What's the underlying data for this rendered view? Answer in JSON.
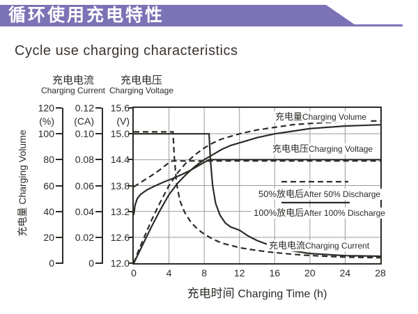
{
  "banner": {
    "title_zh": "循环使用充电特性",
    "accent_color": "#7b73b5"
  },
  "page": {
    "subtitle_en": "Cycle use charging characteristics"
  },
  "chart_data": {
    "type": "line",
    "title_zh": "循环使用充电特性",
    "title_en": "Cycle use charging characteristics",
    "xlabel_zh": "充电时间",
    "xlabel_en": "Charging Time (h)",
    "x_ticks": [
      "0",
      "4",
      "8",
      "12",
      "16",
      "20",
      "24",
      "28"
    ],
    "axes": {
      "time": {
        "min": 0,
        "max": 28
      },
      "volume": {
        "header_zh": "充电量",
        "header_en": "Charging Volume",
        "unit": "(%)",
        "min": 0,
        "max": 120,
        "ticks": [
          "120",
          "100",
          "80",
          "60",
          "40",
          "20",
          "0"
        ]
      },
      "current": {
        "header_zh": "充电电流",
        "header_en": "Charging Current",
        "unit": "(CA)",
        "min": 0,
        "max": 0.12,
        "ticks": [
          "0.12",
          "0.10",
          "0.08",
          "0.06",
          "0.04",
          "0.02",
          "0"
        ]
      },
      "voltage": {
        "header_zh": "充电电压",
        "header_en": "Charging Voltage",
        "unit": "(V)",
        "min": 12,
        "max": 15.6,
        "ticks": [
          "15.6",
          "15.0",
          "14.4",
          "13.8",
          "13.2",
          "12.6",
          "12.0"
        ]
      }
    },
    "grid": {
      "x_hours": [
        4,
        8,
        12,
        16,
        20,
        24
      ],
      "y_voltages": [
        15.0,
        14.4,
        13.8,
        13.2,
        12.6
      ]
    },
    "series": [
      {
        "name": "charging-current-after-100-discharge",
        "axis": "current",
        "style": "solid",
        "points": [
          [
            0,
            0.1
          ],
          [
            8.55,
            0.1
          ],
          [
            8.7,
            0.08
          ],
          [
            8.95,
            0.06
          ],
          [
            9.3,
            0.046
          ],
          [
            9.8,
            0.037
          ],
          [
            10.4,
            0.031
          ],
          [
            11,
            0.028
          ],
          [
            12,
            0.0255
          ],
          [
            13,
            0.021
          ],
          [
            14,
            0.0175
          ],
          [
            16,
            0.0125
          ],
          [
            18,
            0.0095
          ],
          [
            20,
            0.0075
          ],
          [
            24,
            0.0058
          ],
          [
            28,
            0.0054
          ]
        ]
      },
      {
        "name": "charging-current-after-50-discharge",
        "axis": "current",
        "style": "dashed",
        "points": [
          [
            0,
            0.1015
          ],
          [
            4.45,
            0.1015
          ],
          [
            4.6,
            0.082
          ],
          [
            4.85,
            0.062
          ],
          [
            5.25,
            0.048
          ],
          [
            5.8,
            0.039
          ],
          [
            6.5,
            0.0315
          ],
          [
            7.3,
            0.026
          ],
          [
            8,
            0.0225
          ],
          [
            9,
            0.0185
          ],
          [
            10,
            0.0155
          ],
          [
            12,
            0.012
          ],
          [
            14,
            0.0098
          ],
          [
            16,
            0.0082
          ],
          [
            18,
            0.0069
          ],
          [
            20,
            0.0059
          ],
          [
            24,
            0.0047
          ],
          [
            28,
            0.0042
          ]
        ]
      },
      {
        "name": "charging-voltage-after-100-discharge",
        "axis": "voltage",
        "style": "solid",
        "points": [
          [
            0,
            13.12
          ],
          [
            0.15,
            13.35
          ],
          [
            0.4,
            13.5
          ],
          [
            0.8,
            13.6
          ],
          [
            1.5,
            13.7
          ],
          [
            2.5,
            13.8
          ],
          [
            3.5,
            13.89
          ],
          [
            4.5,
            13.97
          ],
          [
            5.5,
            14.06
          ],
          [
            6.5,
            14.16
          ],
          [
            7.5,
            14.28
          ],
          [
            8.2,
            14.36
          ],
          [
            8.55,
            14.4
          ],
          [
            28,
            14.4
          ]
        ]
      },
      {
        "name": "charging-voltage-after-50-discharge",
        "axis": "voltage",
        "style": "dashed",
        "points": [
          [
            0,
            13.77
          ],
          [
            1,
            13.9
          ],
          [
            2,
            14.03
          ],
          [
            3,
            14.17
          ],
          [
            3.8,
            14.3
          ],
          [
            4.4,
            14.37
          ],
          [
            28,
            14.37
          ]
        ]
      },
      {
        "name": "charging-volume-after-100-discharge",
        "axis": "volume",
        "style": "solid",
        "points": [
          [
            0,
            0
          ],
          [
            0.5,
            7
          ],
          [
            1,
            14
          ],
          [
            2,
            28
          ],
          [
            3,
            41
          ],
          [
            4,
            53
          ],
          [
            5,
            62
          ],
          [
            6,
            69
          ],
          [
            7,
            75
          ],
          [
            8,
            80
          ],
          [
            9,
            84
          ],
          [
            10,
            88
          ],
          [
            11,
            91
          ],
          [
            12,
            93
          ],
          [
            14,
            97
          ],
          [
            16,
            100
          ],
          [
            18,
            102
          ],
          [
            20,
            104
          ],
          [
            24,
            106
          ],
          [
            28,
            107
          ]
        ]
      },
      {
        "name": "charging-volume-after-50-discharge",
        "axis": "volume",
        "style": "dashed",
        "points": [
          [
            0,
            0
          ],
          [
            0.5,
            9
          ],
          [
            1,
            17
          ],
          [
            2,
            33
          ],
          [
            3,
            47
          ],
          [
            4,
            60
          ],
          [
            5,
            70
          ],
          [
            6,
            78
          ],
          [
            7,
            84
          ],
          [
            8,
            89
          ],
          [
            9,
            93
          ],
          [
            10,
            96
          ],
          [
            12,
            100
          ],
          [
            14,
            103
          ],
          [
            16,
            105
          ],
          [
            18,
            107
          ],
          [
            20,
            108
          ],
          [
            24,
            109.5
          ],
          [
            28,
            110
          ]
        ]
      }
    ],
    "curve_labels": {
      "volume": {
        "zh": "充电量",
        "en": "Charging Volume"
      },
      "voltage": {
        "zh": "充电电压",
        "en": "Charging Voltage"
      },
      "current": {
        "zh": "充电电流",
        "en": "Charging Current"
      }
    },
    "legend": [
      {
        "style": "dashed",
        "zh": "50%放电后",
        "en": "After 50% Discharge"
      },
      {
        "style": "solid",
        "zh": "100%放电后",
        "en": "After 100% Discharge"
      }
    ]
  }
}
